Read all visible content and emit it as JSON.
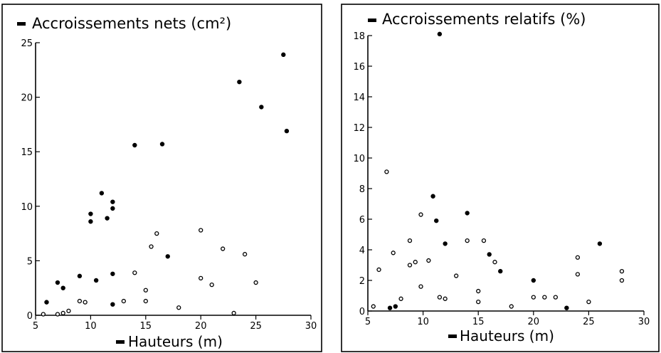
{
  "chart_data": [
    {
      "type": "scatter",
      "title": "Accroissements nets (cm²)",
      "xlabel": "Hauteurs (m)",
      "ylabel": "",
      "xlim": [
        5,
        30
      ],
      "ylim": [
        0,
        25
      ],
      "xticks": [
        5,
        10,
        15,
        20,
        25,
        30
      ],
      "yticks": [
        0,
        5,
        10,
        15,
        20,
        25
      ],
      "grid": false,
      "series": [
        {
          "marker": "filled",
          "points": [
            [
              6,
              1.2
            ],
            [
              7,
              3.0
            ],
            [
              7.5,
              2.5
            ],
            [
              9,
              3.6
            ],
            [
              10,
              9.3
            ],
            [
              10,
              8.6
            ],
            [
              10.5,
              3.2
            ],
            [
              11,
              11.2
            ],
            [
              11.5,
              8.9
            ],
            [
              12,
              10.4
            ],
            [
              12,
              9.8
            ],
            [
              12,
              3.8
            ],
            [
              12,
              1.0
            ],
            [
              14,
              15.6
            ],
            [
              16.5,
              15.7
            ],
            [
              17,
              5.4
            ],
            [
              23.5,
              21.4
            ],
            [
              25.5,
              19.1
            ],
            [
              27.5,
              23.9
            ],
            [
              27.8,
              16.9
            ]
          ]
        },
        {
          "marker": "open",
          "points": [
            [
              5.7,
              0.1
            ],
            [
              7,
              0.1
            ],
            [
              7.5,
              0.2
            ],
            [
              8,
              0.4
            ],
            [
              9,
              1.3
            ],
            [
              9.5,
              1.2
            ],
            [
              13,
              1.3
            ],
            [
              14,
              3.9
            ],
            [
              15,
              2.3
            ],
            [
              15,
              1.3
            ],
            [
              15.5,
              6.3
            ],
            [
              16,
              7.5
            ],
            [
              18,
              0.7
            ],
            [
              20,
              7.8
            ],
            [
              20,
              3.4
            ],
            [
              21,
              2.8
            ],
            [
              22,
              6.1
            ],
            [
              23,
              0.2
            ],
            [
              24,
              5.6
            ],
            [
              25,
              3.0
            ]
          ]
        }
      ]
    },
    {
      "type": "scatter",
      "title": "Accroissements relatifs (%)",
      "xlabel": "Hauteurs (m)",
      "ylabel": "",
      "xlim": [
        5,
        30
      ],
      "ylim": [
        0,
        18
      ],
      "xticks": [
        5,
        10,
        15,
        20,
        25,
        30
      ],
      "yticks": [
        0,
        2,
        4,
        6,
        8,
        10,
        12,
        14,
        16,
        18
      ],
      "grid": false,
      "series": [
        {
          "marker": "filled",
          "points": [
            [
              7,
              0.2
            ],
            [
              7.5,
              0.3
            ],
            [
              10.9,
              7.5
            ],
            [
              11.2,
              5.9
            ],
            [
              11.5,
              18.1
            ],
            [
              12,
              4.4
            ],
            [
              14,
              6.4
            ],
            [
              16,
              3.7
            ],
            [
              17,
              2.6
            ],
            [
              20,
              2.0
            ],
            [
              23,
              0.2
            ],
            [
              26,
              4.4
            ]
          ]
        },
        {
          "marker": "open",
          "points": [
            [
              5.5,
              0.3
            ],
            [
              6,
              2.7
            ],
            [
              6.7,
              9.1
            ],
            [
              7.3,
              3.8
            ],
            [
              8,
              0.8
            ],
            [
              8.8,
              3.0
            ],
            [
              8.8,
              4.6
            ],
            [
              9.3,
              3.2
            ],
            [
              9.8,
              6.3
            ],
            [
              9.8,
              1.6
            ],
            [
              10.5,
              3.3
            ],
            [
              11.5,
              0.9
            ],
            [
              12,
              0.8
            ],
            [
              13,
              2.3
            ],
            [
              14,
              4.6
            ],
            [
              15,
              1.3
            ],
            [
              15,
              0.6
            ],
            [
              15.5,
              4.6
            ],
            [
              16.5,
              3.2
            ],
            [
              18,
              0.3
            ],
            [
              20,
              0.9
            ],
            [
              21,
              0.9
            ],
            [
              22,
              0.9
            ],
            [
              24,
              3.5
            ],
            [
              24,
              2.4
            ],
            [
              25,
              0.6
            ],
            [
              28,
              2.6
            ],
            [
              28,
              2.0
            ]
          ]
        }
      ]
    }
  ]
}
